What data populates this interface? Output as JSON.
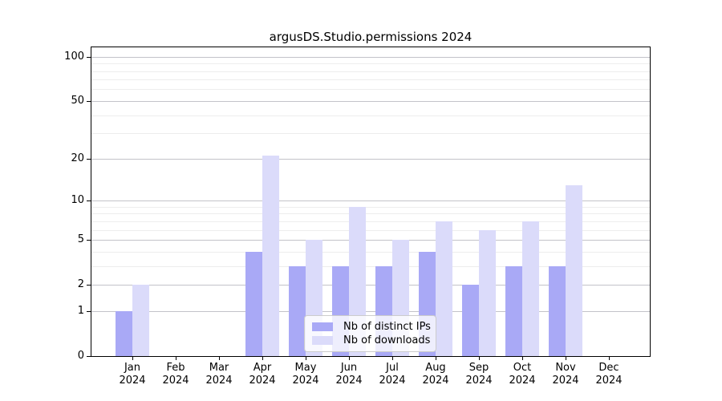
{
  "title": "argusDS.Studio.permissions 2024",
  "legend": {
    "items": [
      {
        "label": "Nb of distinct IPs",
        "color": "#a9a9f6"
      },
      {
        "label": "Nb of downloads",
        "color": "#dbdbfa"
      }
    ]
  },
  "chart_data": {
    "type": "bar",
    "title": "argusDS.Studio.permissions 2024",
    "categories": [
      "Jan",
      "Feb",
      "Mar",
      "Apr",
      "May",
      "Jun",
      "Jul",
      "Aug",
      "Sep",
      "Oct",
      "Nov",
      "Dec"
    ],
    "category_year": "2024",
    "series": [
      {
        "name": "Nb of distinct IPs",
        "color": "#a9a9f6",
        "values": [
          1,
          0,
          0,
          4,
          3,
          3,
          3,
          4,
          2,
          3,
          3,
          0
        ]
      },
      {
        "name": "Nb of downloads",
        "color": "#dbdbfa",
        "values": [
          2,
          0,
          0,
          21,
          5,
          9,
          5,
          7,
          6,
          7,
          13,
          0
        ]
      }
    ],
    "xlabel": "",
    "ylabel": "",
    "yscale": "log10(1+y)",
    "ylim": [
      0,
      116
    ],
    "y_major_ticks": [
      0,
      1,
      2,
      5,
      10,
      20,
      50,
      100
    ],
    "y_minor_gridlines": [
      3,
      4,
      6,
      7,
      8,
      9,
      30,
      40,
      60,
      70,
      80,
      90
    ],
    "grid": true,
    "legend_position": "lower center"
  },
  "colors": {
    "background": "#ffffff",
    "axis_frame": "#000000",
    "grid_major": "#c3c3c9",
    "grid_minor": "#ededed",
    "bar_distinct_ips": "#a9a9f6",
    "bar_downloads": "#dbdbfa",
    "legend_border": "#cccccc"
  }
}
